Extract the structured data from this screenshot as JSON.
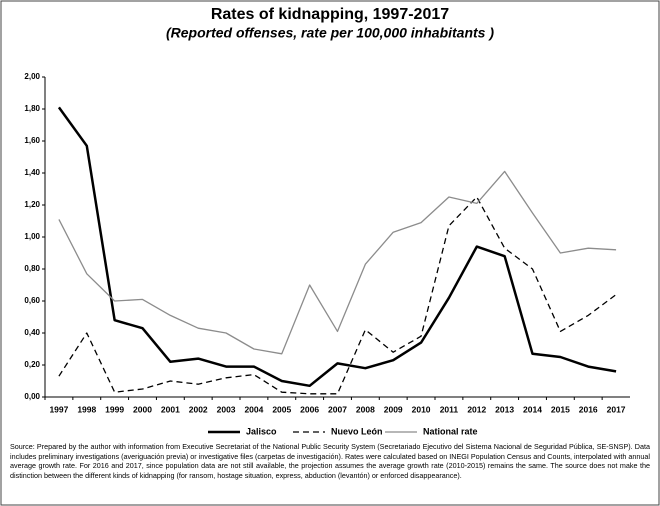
{
  "chart_data": {
    "type": "line",
    "title": "Rates of kidnapping, 1997-2017",
    "subtitle": "(Reported offenses, rate per 100,000 inhabitants )",
    "categories": [
      "1997",
      "1998",
      "1999",
      "2000",
      "2001",
      "2002",
      "2003",
      "2004",
      "2005",
      "2006",
      "2007",
      "2008",
      "2009",
      "2010",
      "2011",
      "2012",
      "2013",
      "2014",
      "2015",
      "2016",
      "2017"
    ],
    "series": [
      {
        "name": "Jalisco",
        "color": "#000000",
        "line_style": "solid",
        "width": 2.5,
        "values": [
          1.81,
          1.57,
          0.48,
          0.43,
          0.22,
          0.24,
          0.19,
          0.19,
          0.1,
          0.07,
          0.21,
          0.18,
          0.23,
          0.34,
          0.62,
          0.94,
          0.88,
          0.27,
          0.25,
          0.19,
          0.16
        ]
      },
      {
        "name": "Nuevo León",
        "color": "#000000",
        "line_style": "dashed",
        "width": 1.3,
        "values": [
          0.13,
          0.4,
          0.03,
          0.05,
          0.1,
          0.08,
          0.12,
          0.14,
          0.03,
          0.02,
          0.02,
          0.42,
          0.28,
          0.38,
          1.07,
          1.25,
          0.93,
          0.8,
          0.41,
          0.51,
          0.64
        ]
      },
      {
        "name": "National rate",
        "color": "#8c8c8c",
        "line_style": "solid",
        "width": 1.3,
        "values": [
          1.11,
          0.77,
          0.6,
          0.61,
          0.51,
          0.43,
          0.4,
          0.3,
          0.27,
          0.7,
          0.41,
          0.83,
          1.03,
          1.09,
          1.25,
          1.21,
          1.41,
          1.15,
          0.9,
          0.93,
          0.92
        ]
      }
    ],
    "ylim": [
      0,
      2
    ],
    "yticks": [
      {
        "value": 0,
        "label": "0,00"
      },
      {
        "value": 0.2,
        "label": "0,20"
      },
      {
        "value": 0.4,
        "label": "0,40"
      },
      {
        "value": 0.6,
        "label": "0,60"
      },
      {
        "value": 0.8,
        "label": "0,80"
      },
      {
        "value": 1,
        "label": "1,00"
      },
      {
        "value": 1.2,
        "label": "1,20"
      },
      {
        "value": 1.4,
        "label": "1,40"
      },
      {
        "value": 1.6,
        "label": "1,60"
      },
      {
        "value": 1.8,
        "label": "1,80"
      },
      {
        "value": 2,
        "label": "2,00"
      }
    ],
    "grid": false,
    "legend": "bottom",
    "note": "Source: Prepared by the author with information from Executive Secretariat of the National Public Security System (Secretariado Ejecutivo del Sistema Nacional de Seguridad Pública, SE-SNSP). Data includes preliminary investigations (averiguación previa) or investigative files (carpetas de investigación). Rates were calculated based on INEGI Population Census and Counts, interpolated with annual average growth rate. For 2016 and 2017, since population data are not still available, the projection assumes the average growth rate (2010-2015) remains the same. The source does not make the distinction between the different kinds of kidnapping (for ransom, hostage situation, express, abduction (levantón) or enforced disappearance)."
  }
}
